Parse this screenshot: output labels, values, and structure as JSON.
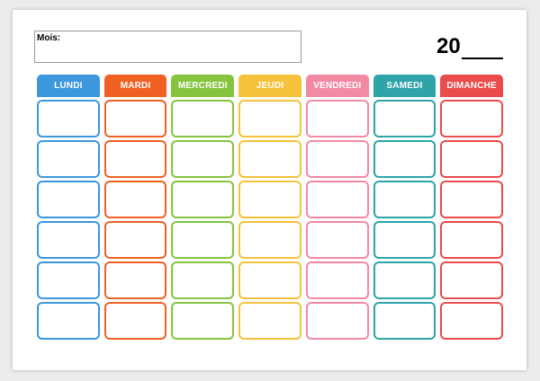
{
  "header": {
    "month_label": "Mois:",
    "year_prefix": "20"
  },
  "days": [
    {
      "label": "LUNDI",
      "color": "#3d97dc"
    },
    {
      "label": "MARDI",
      "color": "#f06022"
    },
    {
      "label": "MERCREDI",
      "color": "#86c440"
    },
    {
      "label": "JEUDI",
      "color": "#f6c23b"
    },
    {
      "label": "VENDREDI",
      "color": "#f28aa3"
    },
    {
      "label": "SAMEDI",
      "color": "#2ea3a8"
    },
    {
      "label": "DIMANCHE",
      "color": "#ea4b4b"
    }
  ],
  "weeks": 6
}
